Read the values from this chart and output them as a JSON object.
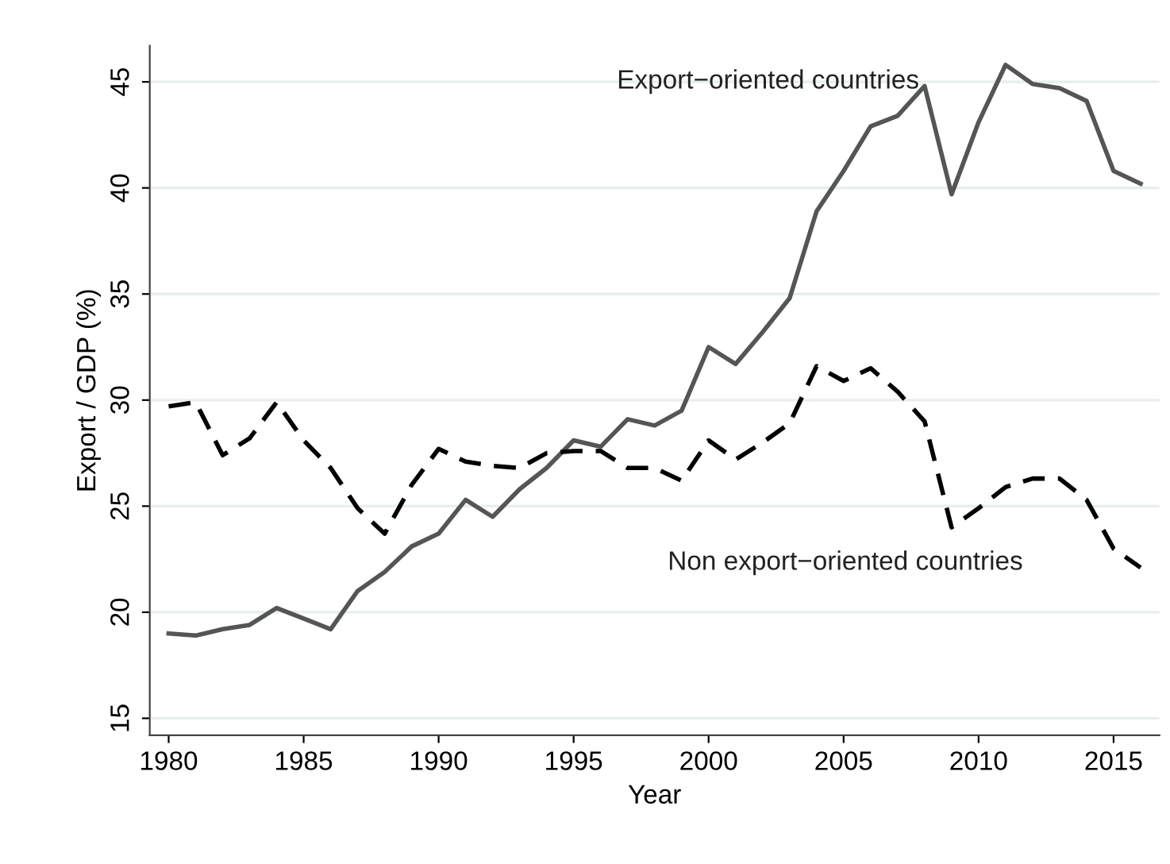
{
  "chart_data": {
    "type": "line",
    "xlabel": "Year",
    "ylabel": "Export / GDP (%)",
    "x": [
      1980,
      1981,
      1982,
      1983,
      1984,
      1985,
      1986,
      1987,
      1988,
      1989,
      1990,
      1991,
      1992,
      1993,
      1994,
      1995,
      1996,
      1997,
      1998,
      1999,
      2000,
      2001,
      2002,
      2003,
      2004,
      2005,
      2006,
      2007,
      2008,
      2009,
      2010,
      2011,
      2012,
      2013,
      2014,
      2015,
      2016
    ],
    "series": [
      {
        "name": "Export−oriented countries",
        "color": "#555555",
        "line_style": "solid",
        "values": [
          19.0,
          18.9,
          19.2,
          19.4,
          20.2,
          19.7,
          19.2,
          21.0,
          21.9,
          23.1,
          23.7,
          25.3,
          24.5,
          25.8,
          26.8,
          28.1,
          27.8,
          29.1,
          28.8,
          29.5,
          32.5,
          31.7,
          33.2,
          34.8,
          38.9,
          40.8,
          42.9,
          43.4,
          44.8,
          39.7,
          43.1,
          45.8,
          44.9,
          44.7,
          44.1,
          40.8,
          40.2
        ]
      },
      {
        "name": "Non export−oriented countries",
        "color": "#000000",
        "line_style": "dashed",
        "values": [
          29.7,
          29.9,
          27.4,
          28.2,
          29.9,
          28.1,
          26.8,
          24.9,
          23.7,
          26.0,
          27.7,
          27.1,
          26.9,
          26.8,
          27.5,
          27.6,
          27.6,
          26.8,
          26.8,
          26.2,
          28.1,
          27.2,
          28.0,
          28.9,
          31.6,
          30.9,
          31.5,
          30.4,
          29.0,
          24.0,
          24.9,
          25.9,
          26.3,
          26.3,
          25.3,
          23.0,
          22.1
        ]
      }
    ],
    "xlim": [
      1979.3,
      2016.7
    ],
    "ylim": [
      14.2,
      46.7
    ],
    "xticks": [
      1980,
      1985,
      1990,
      1995,
      2000,
      2005,
      2010,
      2015
    ],
    "yticks": [
      15,
      20,
      25,
      30,
      35,
      40,
      45
    ],
    "grid": "y",
    "legend": false,
    "marker": "none"
  }
}
